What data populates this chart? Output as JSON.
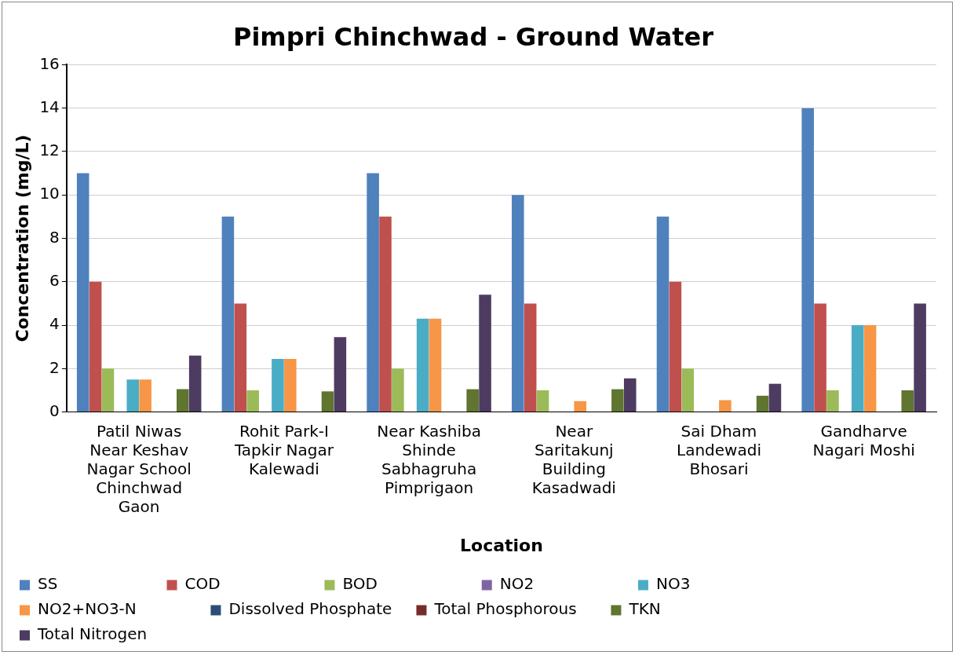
{
  "chart_data": {
    "type": "bar",
    "title": "Pimpri Chinchwad - Ground Water",
    "xlabel": "Location",
    "ylabel": "Concentration (mg/L)",
    "categories": [
      "Patil Niwas Near Keshav Nagar School Chinchwad Gaon",
      "Rohit Park-I Tapkir Nagar Kalewadi",
      "Near Kashiba Shinde Sabhagruha Pimprigaon",
      "Near Saritakunj Building Kasadwadi",
      "Sai Dham Landewadi Bhosari",
      "Gandharve Nagari Moshi"
    ],
    "series": [
      {
        "name": "SS",
        "color": "#4f81bd",
        "values": [
          11,
          9,
          11,
          10,
          9,
          14
        ]
      },
      {
        "name": "COD",
        "color": "#c0504d",
        "values": [
          6,
          5,
          9,
          5,
          6,
          5
        ]
      },
      {
        "name": "BOD",
        "color": "#9bbb59",
        "values": [
          2,
          1,
          2,
          1,
          2,
          1
        ]
      },
      {
        "name": "NO2",
        "color": "#8064a2",
        "values": [
          null,
          null,
          null,
          null,
          null,
          null
        ]
      },
      {
        "name": "NO3",
        "color": "#4bacc6",
        "values": [
          1.5,
          2.45,
          4.3,
          null,
          null,
          4
        ]
      },
      {
        "name": "NO2+NO3-N",
        "color": "#f79646",
        "values": [
          1.5,
          2.45,
          4.3,
          0.5,
          0.55,
          4
        ]
      },
      {
        "name": "Dissolved Phosphate",
        "color": "#2c4d75",
        "values": [
          null,
          null,
          null,
          null,
          null,
          null
        ]
      },
      {
        "name": "Total Phosphorous",
        "color": "#772c2a",
        "values": [
          null,
          null,
          null,
          null,
          null,
          null
        ]
      },
      {
        "name": "TKN",
        "color": "#5f7530",
        "values": [
          1.05,
          0.95,
          1.05,
          1.05,
          0.75,
          1
        ]
      },
      {
        "name": "Total Nitrogen",
        "color": "#4d3b62",
        "values": [
          2.6,
          3.45,
          5.4,
          1.55,
          1.3,
          5
        ]
      }
    ],
    "ylim": [
      0,
      16
    ],
    "yticks": [
      0,
      2,
      4,
      6,
      8,
      10,
      12,
      14,
      16
    ],
    "grid": "y",
    "legend": "bottom"
  }
}
